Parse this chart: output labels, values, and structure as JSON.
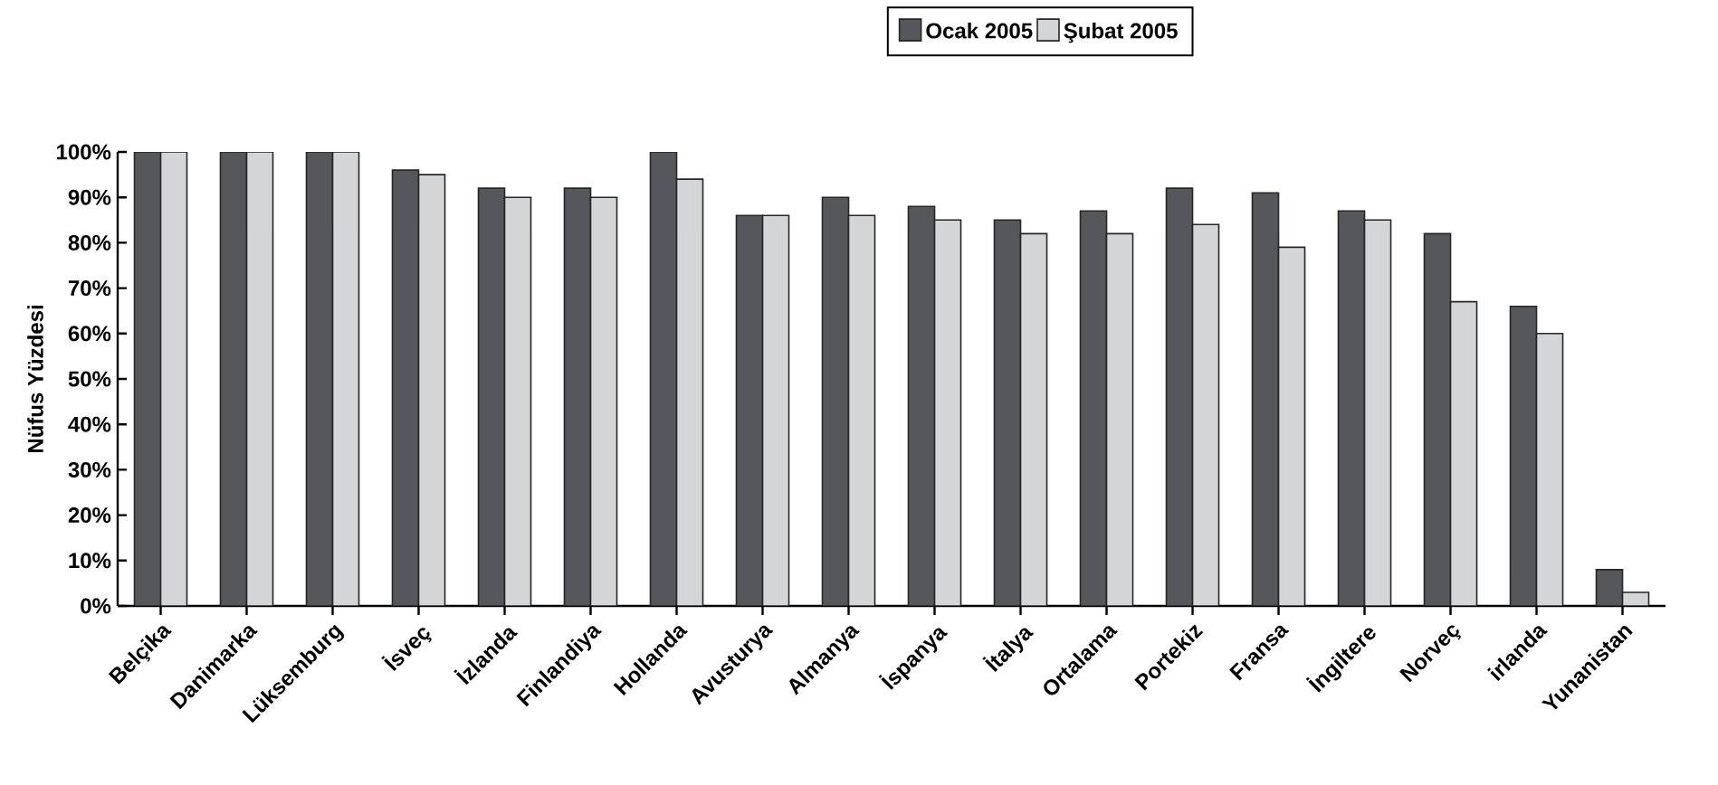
{
  "chart_data": {
    "type": "bar",
    "ylabel": "Nüfus Yüzdesi",
    "categories": [
      "Belçika",
      "Danimarka",
      "Lüksemburg",
      "İsveç",
      "İzlanda",
      "Finlandiya",
      "Hollanda",
      "Avusturya",
      "Almanya",
      "İspanya",
      "İtalya",
      "Ortalama",
      "Portekiz",
      "Fransa",
      "İngiltere",
      "Norveç",
      "irlanda",
      "Yunanistan"
    ],
    "series": [
      {
        "name": "Ocak 2005",
        "color": "#55575a",
        "values": [
          100,
          100,
          100,
          96,
          92,
          92,
          100,
          86,
          90,
          88,
          85,
          87,
          92,
          91,
          87,
          82,
          66,
          8
        ]
      },
      {
        "name": "Şubat 2005",
        "color": "#d4d5d7",
        "values": [
          100,
          100,
          100,
          95,
          90,
          90,
          94,
          86,
          86,
          85,
          82,
          82,
          84,
          79,
          85,
          67,
          60,
          3
        ]
      }
    ],
    "ylim": [
      0,
      100
    ],
    "yticks": [
      {
        "value": 0,
        "label": "0%"
      },
      {
        "value": 10,
        "label": "10%"
      },
      {
        "value": 20,
        "label": "20%"
      },
      {
        "value": 30,
        "label": "30%"
      },
      {
        "value": 40,
        "label": "40%"
      },
      {
        "value": 50,
        "label": "50%"
      },
      {
        "value": 60,
        "label": "60%"
      },
      {
        "value": 70,
        "label": "70%"
      },
      {
        "value": 80,
        "label": "80%"
      },
      {
        "value": 90,
        "label": "90%"
      },
      {
        "value": 100,
        "label": "100%"
      }
    ],
    "grid": false,
    "legend": "top"
  }
}
